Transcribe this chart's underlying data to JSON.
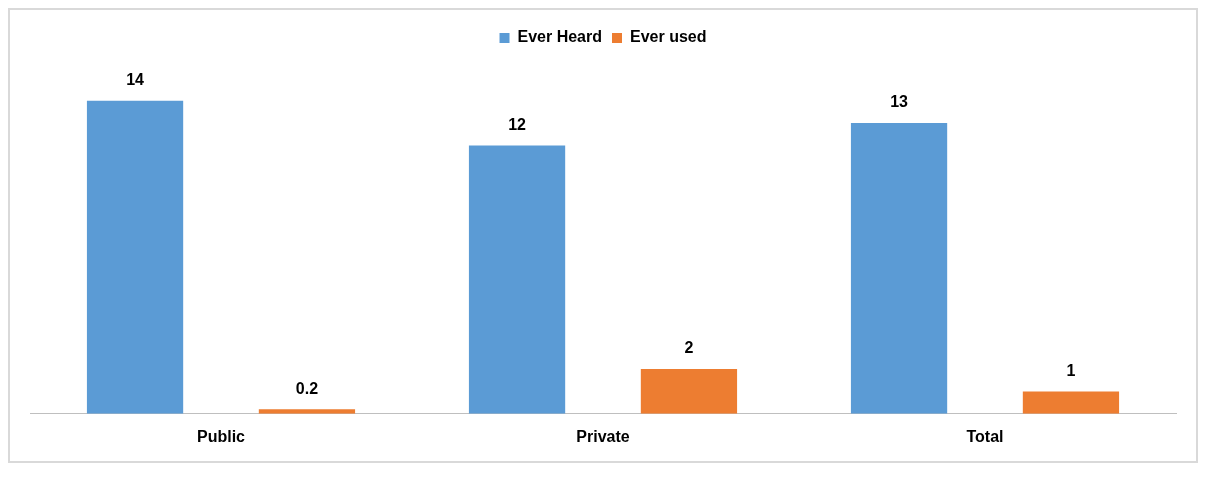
{
  "chart_data": {
    "type": "bar",
    "categories": [
      "Public",
      "Private",
      "Total"
    ],
    "series": [
      {
        "name": "Ever Heard",
        "color": "#5b9bd5",
        "values": [
          14,
          12,
          13
        ]
      },
      {
        "name": "Ever used",
        "color": "#ed7d31",
        "values": [
          0.2,
          2,
          1
        ]
      }
    ],
    "data_labels": true,
    "legend": "top",
    "grid": false
  }
}
